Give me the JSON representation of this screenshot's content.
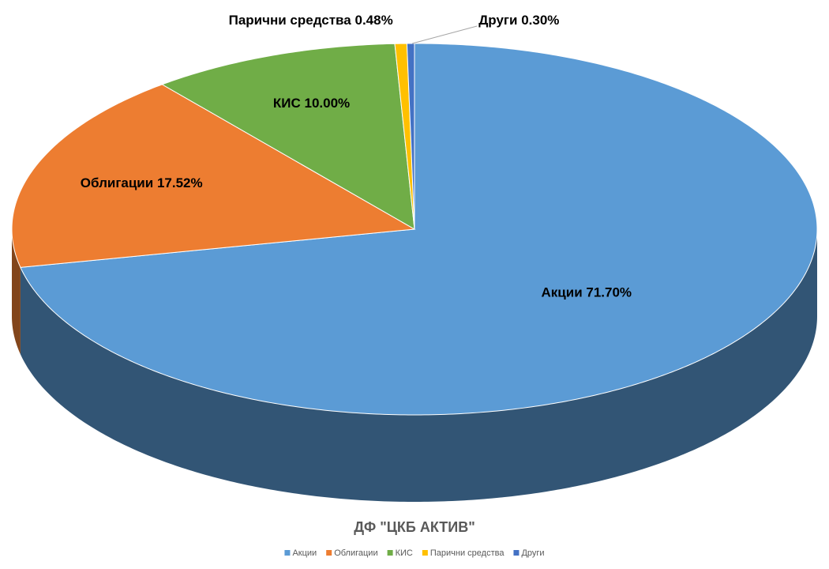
{
  "chart_data": {
    "type": "pie3d",
    "title": "ДФ \"ЦКБ АКТИВ\"",
    "categories": [
      "Акции",
      "Облигации",
      "КИС",
      "Парични средства",
      "Други"
    ],
    "values": [
      71.7,
      17.52,
      10.0,
      0.48,
      0.3
    ],
    "value_labels": [
      "71.70%",
      "17.52%",
      "10.00%",
      "0.48%",
      "0.30%"
    ],
    "colors": [
      "#5b9bd5",
      "#ed7d31",
      "#70ad47",
      "#ffc000",
      "#4472c4"
    ],
    "legend": "bottom"
  }
}
